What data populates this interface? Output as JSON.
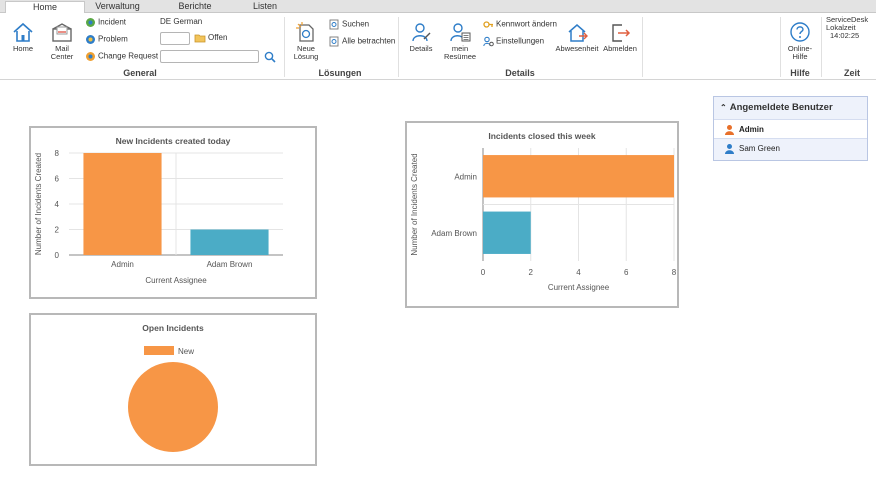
{
  "tabs": [
    "Home",
    "Verwaltung",
    "Berichte",
    "Listen"
  ],
  "ribbon": {
    "general": {
      "label": "General",
      "home": "Home",
      "mail_center_1": "Mail",
      "mail_center_2": "Center",
      "incident": "Incident",
      "problem": "Problem",
      "change_request": "Change Request",
      "language": "DE German",
      "offen": "Offen"
    },
    "loesungen": {
      "label": "Lösungen",
      "neue_loesung_1": "Neue",
      "neue_loesung_2": "Lösung",
      "suchen": "Suchen",
      "alle_betrachten": "Alle betrachten"
    },
    "details": {
      "label": "Details",
      "details": "Details",
      "mein_resumee_1": "mein",
      "mein_resumee_2": "Resümee",
      "kennwort": "Kennwort ändern",
      "einstellungen": "Einstellungen",
      "abwesenheit": "Abwesenheit",
      "abmelden": "Abmelden"
    },
    "hilfe": {
      "label": "Hilfe",
      "online_hilfe_1": "Online-",
      "online_hilfe_2": "Hilfe"
    },
    "zeit": {
      "label": "Zeit",
      "servicedesk": "ServiceDesk",
      "lokalzeit": "Lokalzeit",
      "time": "14:02:25"
    }
  },
  "userbox": {
    "title": "Angemeldete Benutzer",
    "users": [
      "Admin",
      "Sam Green"
    ]
  },
  "colors": {
    "orange": "#f79646",
    "teal": "#4bacc6",
    "ribbon_blue": "#2e7dc8"
  },
  "chart_data": [
    {
      "type": "bar",
      "title": "New Incidents created today",
      "categories": [
        "Admin",
        "Adam Brown"
      ],
      "values": [
        8,
        2
      ],
      "colors": [
        "#f79646",
        "#4bacc6"
      ],
      "xlabel": "Current Assignee",
      "ylabel": "Number of Incidents Created",
      "ylim": [
        0,
        8
      ],
      "yticks": [
        "0",
        "2",
        "4",
        "6",
        "8"
      ]
    },
    {
      "type": "bar",
      "orientation": "horizontal",
      "title": "Incidents closed this week",
      "categories": [
        "Admin",
        "Adam Brown"
      ],
      "values": [
        8,
        2
      ],
      "colors": [
        "#f79646",
        "#4bacc6"
      ],
      "xlabel": "Current Assignee",
      "ylabel": "Number of Incidents Created",
      "xlim": [
        0,
        8
      ],
      "xticks": [
        "0",
        "2",
        "4",
        "6",
        "8"
      ]
    },
    {
      "type": "pie",
      "title": "Open Incidents",
      "categories": [
        "New"
      ],
      "values": [
        1
      ],
      "colors": [
        "#f79646"
      ],
      "legend": "top"
    }
  ]
}
